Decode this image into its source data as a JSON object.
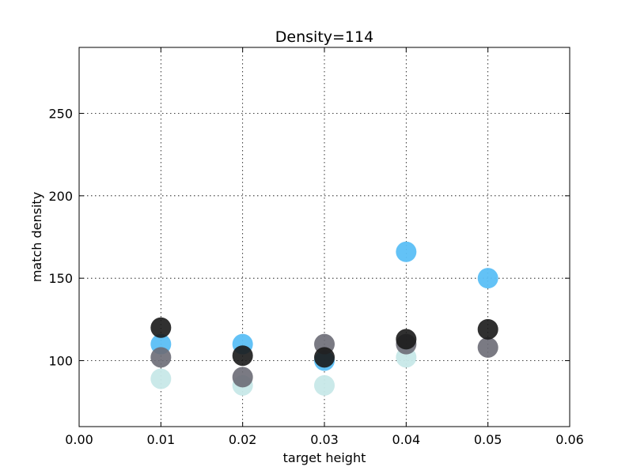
{
  "chart_data": {
    "type": "scatter",
    "title": "Density=114",
    "xlabel": "target height",
    "ylabel": "match density",
    "xlim": [
      0.0,
      0.06
    ],
    "ylim": [
      60,
      290
    ],
    "xticks": [
      "0.00",
      "0.01",
      "0.02",
      "0.03",
      "0.04",
      "0.05",
      "0.06"
    ],
    "yticks": [
      "100",
      "150",
      "200",
      "250"
    ],
    "grid": true,
    "legend": "none",
    "series": [
      {
        "color": "#c7e8e8",
        "opacity": 0.95,
        "points": [
          [
            0.01,
            89
          ],
          [
            0.02,
            85
          ],
          [
            0.03,
            85
          ],
          [
            0.04,
            102
          ]
        ]
      },
      {
        "color": "#5bbff5",
        "opacity": 0.95,
        "points": [
          [
            0.01,
            110
          ],
          [
            0.02,
            110
          ],
          [
            0.03,
            100
          ],
          [
            0.04,
            166
          ],
          [
            0.05,
            150
          ]
        ]
      },
      {
        "color": "#6b6b75",
        "opacity": 0.9,
        "points": [
          [
            0.01,
            102
          ],
          [
            0.02,
            90
          ],
          [
            0.03,
            110
          ],
          [
            0.04,
            110
          ],
          [
            0.05,
            108
          ]
        ]
      },
      {
        "color": "#1a1a1a",
        "opacity": 0.9,
        "points": [
          [
            0.01,
            120
          ],
          [
            0.02,
            103
          ],
          [
            0.03,
            102
          ],
          [
            0.04,
            113
          ],
          [
            0.05,
            119
          ]
        ]
      }
    ]
  }
}
